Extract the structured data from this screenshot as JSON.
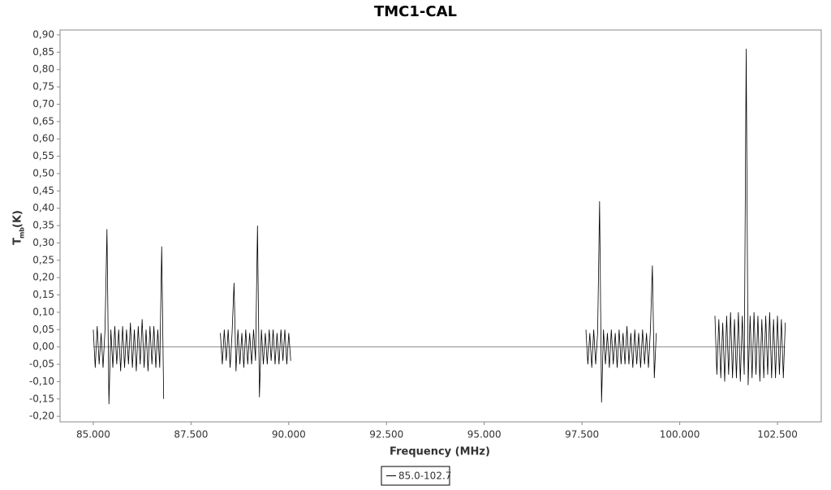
{
  "chart_data": {
    "type": "line",
    "title": "TMC1-CAL",
    "xlabel": "Frequency (MHz)",
    "ylabel": {
      "symbol": "T",
      "subscript": "mb",
      "unit": "(K)"
    },
    "xlim": [
      84.15,
      103.62
    ],
    "ylim": [
      -0.216,
      0.914
    ],
    "xticks": [
      {
        "value": 85,
        "label": "85.000"
      },
      {
        "value": 87.5,
        "label": "87.500"
      },
      {
        "value": 90,
        "label": "90.000"
      },
      {
        "value": 92.5,
        "label": "92.500"
      },
      {
        "value": 95,
        "label": "95.000"
      },
      {
        "value": 97.5,
        "label": "97.500"
      },
      {
        "value": 100,
        "label": "100.000"
      },
      {
        "value": 102.5,
        "label": "102.500"
      }
    ],
    "yticks": [
      {
        "value": -0.2,
        "label": "-0,20"
      },
      {
        "value": -0.15,
        "label": "-0,15"
      },
      {
        "value": -0.1,
        "label": "-0,10"
      },
      {
        "value": -0.05,
        "label": "-0,05"
      },
      {
        "value": 0,
        "label": "0,00"
      },
      {
        "value": 0.05,
        "label": "0,05"
      },
      {
        "value": 0.1,
        "label": "0,10"
      },
      {
        "value": 0.15,
        "label": "0,15"
      },
      {
        "value": 0.2,
        "label": "0,20"
      },
      {
        "value": 0.25,
        "label": "0,25"
      },
      {
        "value": 0.3,
        "label": "0,30"
      },
      {
        "value": 0.35,
        "label": "0,35"
      },
      {
        "value": 0.4,
        "label": "0,40"
      },
      {
        "value": 0.45,
        "label": "0,45"
      },
      {
        "value": 0.5,
        "label": "0,50"
      },
      {
        "value": 0.55,
        "label": "0,55"
      },
      {
        "value": 0.6,
        "label": "0,60"
      },
      {
        "value": 0.65,
        "label": "0,65"
      },
      {
        "value": 0.7,
        "label": "0,70"
      },
      {
        "value": 0.75,
        "label": "0,75"
      },
      {
        "value": 0.8,
        "label": "0,80"
      },
      {
        "value": 0.85,
        "label": "0,85"
      },
      {
        "value": 0.9,
        "label": "0,90"
      }
    ],
    "x": [
      85.0,
      85.05,
      85.1,
      85.15,
      85.2,
      85.25,
      85.3,
      85.35,
      85.4,
      85.45,
      85.5,
      85.55,
      85.6,
      85.65,
      85.7,
      85.75,
      85.8,
      85.85,
      85.9,
      85.95,
      86.0,
      86.05,
      86.1,
      86.15,
      86.2,
      86.25,
      86.3,
      86.35,
      86.4,
      86.45,
      86.5,
      86.55,
      86.6,
      86.65,
      86.7,
      86.75,
      86.8,
      87.5,
      88.25,
      88.3,
      88.35,
      88.4,
      88.45,
      88.5,
      88.55,
      88.6,
      88.65,
      88.7,
      88.75,
      88.8,
      88.85,
      88.9,
      88.95,
      89.0,
      89.05,
      89.1,
      89.15,
      89.2,
      89.25,
      89.3,
      89.35,
      89.4,
      89.45,
      89.5,
      89.55,
      89.6,
      89.65,
      89.7,
      89.75,
      89.8,
      89.85,
      89.9,
      89.95,
      90.0,
      90.05,
      93.0,
      97.6,
      97.65,
      97.7,
      97.75,
      97.8,
      97.85,
      97.9,
      97.95,
      98.0,
      98.05,
      98.1,
      98.15,
      98.2,
      98.25,
      98.3,
      98.35,
      98.4,
      98.45,
      98.5,
      98.55,
      98.6,
      98.65,
      98.7,
      98.75,
      98.8,
      98.85,
      98.9,
      98.95,
      99.0,
      99.05,
      99.1,
      99.15,
      99.2,
      99.25,
      99.3,
      99.35,
      99.4,
      100.2,
      100.9,
      100.95,
      101.0,
      101.05,
      101.1,
      101.15,
      101.2,
      101.25,
      101.3,
      101.35,
      101.4,
      101.45,
      101.5,
      101.55,
      101.6,
      101.65,
      101.7,
      101.75,
      101.8,
      101.85,
      101.9,
      101.95,
      102.0,
      102.05,
      102.1,
      102.15,
      102.2,
      102.25,
      102.3,
      102.35,
      102.4,
      102.45,
      102.5,
      102.55,
      102.6,
      102.65,
      102.7
    ],
    "series": [
      {
        "name": "85.0-102.7",
        "color": "#000000",
        "values": [
          0.05,
          -0.06,
          0.06,
          -0.05,
          0.04,
          -0.06,
          0.05,
          0.34,
          -0.165,
          0.05,
          -0.06,
          0.06,
          -0.05,
          0.05,
          -0.07,
          0.06,
          -0.06,
          0.05,
          -0.05,
          0.07,
          -0.06,
          0.05,
          -0.07,
          0.06,
          -0.05,
          0.08,
          -0.06,
          0.05,
          -0.07,
          0.06,
          -0.05,
          0.06,
          -0.06,
          0.05,
          -0.06,
          0.29,
          -0.15,
          null,
          0.04,
          -0.05,
          0.05,
          -0.04,
          0.05,
          -0.06,
          0.04,
          0.185,
          -0.07,
          0.05,
          -0.05,
          0.04,
          -0.06,
          0.05,
          -0.05,
          0.04,
          -0.05,
          0.05,
          -0.04,
          0.35,
          -0.145,
          0.05,
          -0.05,
          0.04,
          -0.05,
          0.05,
          -0.04,
          0.05,
          -0.05,
          0.04,
          -0.05,
          0.05,
          -0.04,
          0.05,
          -0.05,
          0.04,
          -0.04,
          null,
          0.05,
          -0.05,
          0.04,
          -0.06,
          0.05,
          -0.05,
          0.04,
          0.42,
          -0.16,
          0.05,
          -0.05,
          0.04,
          -0.06,
          0.05,
          -0.05,
          0.04,
          -0.06,
          0.05,
          -0.05,
          0.04,
          -0.05,
          0.06,
          -0.05,
          0.04,
          -0.06,
          0.05,
          -0.05,
          0.04,
          -0.06,
          0.05,
          -0.05,
          0.04,
          -0.06,
          0.05,
          0.235,
          -0.09,
          0.04,
          null,
          0.09,
          -0.08,
          0.08,
          -0.09,
          0.07,
          -0.1,
          0.09,
          -0.08,
          0.1,
          -0.09,
          0.08,
          -0.09,
          0.1,
          -0.1,
          0.09,
          -0.08,
          0.86,
          -0.11,
          0.09,
          -0.09,
          0.1,
          -0.08,
          0.09,
          -0.1,
          0.08,
          -0.09,
          0.09,
          -0.08,
          0.1,
          -0.09,
          0.08,
          -0.09,
          0.09,
          -0.08,
          0.08,
          -0.09,
          0.07
        ]
      }
    ]
  }
}
